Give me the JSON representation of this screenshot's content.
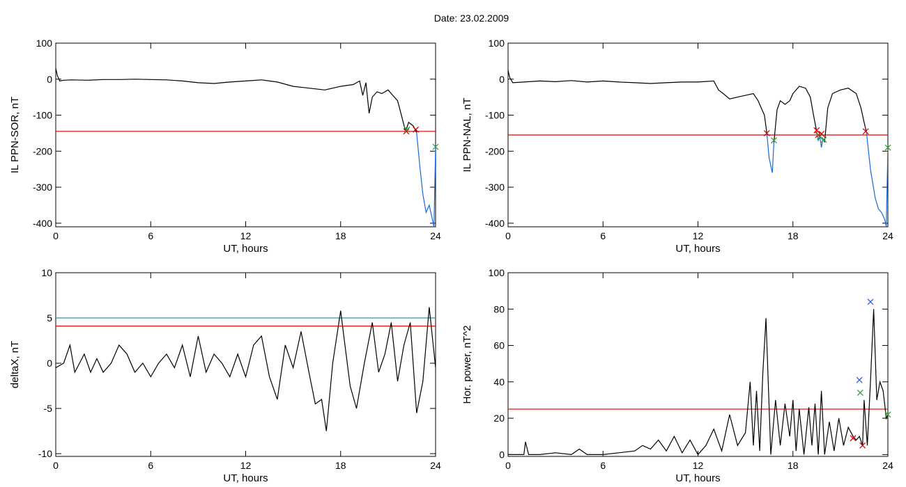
{
  "title": "Date:  23.02.2009",
  "colors": {
    "trace": "#000000",
    "threshold": "#e00000",
    "teal_line": "#2a9a9a",
    "marker_red": "#e00000",
    "marker_green": "#40a040",
    "marker_blue": "#2060e0",
    "segment_blue": "#1a6ad8"
  },
  "chart_data": [
    {
      "type": "line",
      "ylabel": "IL PPN-SOR, nT",
      "xlabel": "UT, hours",
      "xlim": [
        0,
        24
      ],
      "ylim": [
        -410,
        100
      ],
      "xticks": [
        0,
        6,
        12,
        18,
        24
      ],
      "yticks": [
        100,
        0,
        -100,
        -200,
        -300,
        -400
      ],
      "thresholds": [
        {
          "y": -145,
          "color": "#e00000"
        }
      ],
      "series": [
        {
          "color": "#000000",
          "x": [
            0,
            0.1,
            0.25,
            0.5,
            1,
            2,
            3,
            4,
            5,
            6,
            7,
            8,
            9,
            10,
            11,
            12,
            13,
            14,
            15,
            16,
            17,
            18,
            18.8,
            19.2,
            19.4,
            19.6,
            19.8,
            20,
            20.3,
            20.6,
            21,
            21.3,
            21.6,
            21.9,
            22.1,
            22.3,
            22.45,
            22.6,
            22.7,
            22.8
          ],
          "y": [
            30,
            10,
            -5,
            -3,
            -2,
            -3,
            -1,
            -1,
            0,
            -1,
            -2,
            -5,
            -10,
            -12,
            -8,
            -5,
            -2,
            -8,
            -20,
            -25,
            -30,
            -20,
            -15,
            -5,
            -45,
            -10,
            -95,
            -50,
            -35,
            -40,
            -30,
            -45,
            -60,
            -110,
            -145,
            -120,
            -125,
            -130,
            -140,
            -148
          ]
        },
        {
          "color": "#1a6ad8",
          "x": [
            22.8,
            23,
            23.2,
            23.4,
            23.6,
            23.8,
            23.9,
            24
          ],
          "y": [
            -148,
            -240,
            -320,
            -370,
            -350,
            -390,
            -410,
            -190
          ]
        }
      ],
      "markers": [
        {
          "x": 22.15,
          "y": -145,
          "color": "#e00000"
        },
        {
          "x": 22.2,
          "y": -140,
          "color": "#40a040"
        },
        {
          "x": 22.75,
          "y": -140,
          "color": "#e00000"
        },
        {
          "x": 24,
          "y": -188,
          "color": "#40a040"
        }
      ]
    },
    {
      "type": "line",
      "ylabel": "IL PPN-NAL, nT",
      "xlabel": "UT, hours",
      "xlim": [
        0,
        24
      ],
      "ylim": [
        -410,
        100
      ],
      "xticks": [
        0,
        6,
        12,
        18,
        24
      ],
      "yticks": [
        100,
        0,
        -100,
        -200,
        -300,
        -400
      ],
      "thresholds": [
        {
          "y": -155,
          "color": "#e00000"
        }
      ],
      "series": [
        {
          "color": "#000000",
          "x": [
            0,
            0.1,
            0.3,
            1,
            2,
            3,
            4,
            5,
            6,
            7,
            8,
            9,
            10,
            11,
            12,
            13,
            13.3,
            13.6,
            14,
            14.5,
            15,
            15.5,
            15.8,
            16,
            16.2,
            16.35
          ],
          "y": [
            25,
            5,
            -10,
            -8,
            -5,
            -7,
            -4,
            -8,
            -5,
            -8,
            -10,
            -12,
            -10,
            -8,
            -8,
            -5,
            -30,
            -40,
            -55,
            -50,
            -45,
            -40,
            -60,
            -80,
            -100,
            -150
          ]
        },
        {
          "color": "#1a6ad8",
          "x": [
            16.35,
            16.5,
            16.7,
            16.8
          ],
          "y": [
            -150,
            -220,
            -260,
            -175
          ]
        },
        {
          "color": "#000000",
          "x": [
            16.8,
            17,
            17.2,
            17.5,
            17.8,
            18,
            18.4,
            18.8,
            19.1,
            19.3,
            19.5
          ],
          "y": [
            -175,
            -85,
            -60,
            -70,
            -60,
            -40,
            -20,
            -25,
            -50,
            -100,
            -145
          ]
        },
        {
          "color": "#1a6ad8",
          "x": [
            19.5,
            19.6,
            19.7,
            19.8,
            19.9,
            20
          ],
          "y": [
            -145,
            -170,
            -160,
            -190,
            -165,
            -175
          ]
        },
        {
          "color": "#000000",
          "x": [
            20,
            20.2,
            20.5,
            21,
            21.5,
            22,
            22.3,
            22.5,
            22.65
          ],
          "y": [
            -175,
            -80,
            -40,
            -30,
            -25,
            -40,
            -80,
            -120,
            -148
          ]
        },
        {
          "color": "#1a6ad8",
          "x": [
            22.65,
            22.9,
            23.2,
            23.4,
            23.6,
            23.8,
            23.9,
            24
          ],
          "y": [
            -148,
            -250,
            -330,
            -360,
            -370,
            -390,
            -410,
            -190
          ]
        }
      ],
      "markers": [
        {
          "x": 16.35,
          "y": -150,
          "color": "#e00000"
        },
        {
          "x": 16.8,
          "y": -170,
          "color": "#40a040"
        },
        {
          "x": 19.5,
          "y": -142,
          "color": "#e00000"
        },
        {
          "x": 19.6,
          "y": -155,
          "color": "#e00000"
        },
        {
          "x": 19.7,
          "y": -160,
          "color": "#40a040"
        },
        {
          "x": 19.8,
          "y": -152,
          "color": "#e00000"
        },
        {
          "x": 19.95,
          "y": -168,
          "color": "#40a040"
        },
        {
          "x": 22.6,
          "y": -145,
          "color": "#e00000"
        },
        {
          "x": 24,
          "y": -190,
          "color": "#40a040"
        }
      ]
    },
    {
      "type": "line",
      "ylabel": "deltaX, nT",
      "xlabel": "UT, hours",
      "xlim": [
        0,
        24
      ],
      "ylim": [
        -10.3,
        10
      ],
      "xticks": [
        0,
        6,
        12,
        18,
        24
      ],
      "yticks": [
        10,
        5,
        0,
        -5,
        -10
      ],
      "thresholds": [
        {
          "y": 5.0,
          "color": "#2a9a9a"
        },
        {
          "y": 4.1,
          "color": "#e00000"
        }
      ],
      "series": [
        {
          "color": "#000000",
          "x": [
            0,
            0.5,
            0.9,
            1.2,
            1.5,
            1.8,
            2.2,
            2.6,
            3,
            3.5,
            4,
            4.5,
            5,
            5.5,
            6,
            6.5,
            7,
            7.5,
            8,
            8.5,
            9,
            9.5,
            10,
            10.5,
            11,
            11.5,
            12,
            12.5,
            13,
            13.5,
            14,
            14.5,
            15,
            15.5,
            16,
            16.4,
            16.8,
            17.1,
            17.5,
            18,
            18.2,
            18.6,
            19,
            19.5,
            20,
            20.4,
            20.8,
            21.2,
            21.6,
            22,
            22.4,
            22.8,
            23.2,
            23.6,
            24
          ],
          "y": [
            -0.5,
            0,
            2,
            -1,
            0,
            1,
            -1,
            0.5,
            -1,
            0,
            2,
            1,
            -1,
            0,
            -1.5,
            0,
            1,
            -0.5,
            2,
            -1.5,
            3,
            -1,
            1,
            0,
            -1.5,
            1,
            -1.5,
            2,
            3,
            -1.5,
            -4,
            2,
            -0.5,
            3.5,
            -1,
            -4.5,
            -4,
            -7.5,
            0,
            5.8,
            3,
            -2.5,
            -5,
            0,
            4.5,
            -1,
            1,
            4.5,
            -2,
            2,
            4.5,
            -5.5,
            -2,
            6.2,
            -0.5
          ]
        }
      ],
      "markers": []
    },
    {
      "type": "line",
      "ylabel": "Hor. power, nT^2",
      "xlabel": "UT, hours",
      "xlim": [
        0,
        24
      ],
      "ylim": [
        -1,
        100
      ],
      "xticks": [
        0,
        6,
        12,
        18,
        24
      ],
      "yticks": [
        100,
        80,
        60,
        40,
        20,
        0
      ],
      "thresholds": [
        {
          "y": 25,
          "color": "#e00000"
        }
      ],
      "series": [
        {
          "color": "#000000",
          "x": [
            0,
            0.5,
            1,
            1.1,
            1.3,
            2,
            3,
            4,
            4.5,
            5,
            6,
            7,
            8,
            8.5,
            9,
            9.5,
            10,
            10.5,
            11,
            11.5,
            12,
            12.5,
            13,
            13.5,
            14,
            14.5,
            15,
            15.3,
            15.5,
            15.7,
            15.9,
            16.1,
            16.3,
            16.6,
            16.9,
            17.2,
            17.5,
            17.8,
            18,
            18.2,
            18.4,
            18.7,
            19,
            19.2,
            19.4,
            19.6,
            19.8,
            20,
            20.3,
            20.6,
            20.9,
            21.2,
            21.5,
            21.8,
            22,
            22.2,
            22.4,
            22.5,
            22.7,
            22.9,
            23.1,
            23.3,
            23.5,
            23.7,
            23.9,
            24
          ],
          "y": [
            0,
            0,
            0,
            7,
            0,
            0,
            1,
            0,
            3,
            0,
            0,
            1,
            2,
            5,
            3,
            8,
            2,
            10,
            1,
            8,
            0,
            5,
            14,
            2,
            22,
            5,
            12,
            40,
            5,
            35,
            2,
            45,
            75,
            0,
            30,
            5,
            28,
            10,
            30,
            2,
            25,
            0,
            26,
            5,
            28,
            0,
            35,
            0,
            18,
            2,
            20,
            5,
            15,
            10,
            8,
            10,
            5,
            30,
            5,
            40,
            80,
            30,
            40,
            35,
            20,
            22
          ]
        }
      ],
      "markers": [
        {
          "x": 21.8,
          "y": 9,
          "color": "#e00000"
        },
        {
          "x": 22.2,
          "y": 41,
          "color": "#2060e0"
        },
        {
          "x": 22.25,
          "y": 34,
          "color": "#40a040"
        },
        {
          "x": 22.4,
          "y": 5,
          "color": "#e00000"
        },
        {
          "x": 22.9,
          "y": 84,
          "color": "#2060e0"
        },
        {
          "x": 24,
          "y": 22,
          "color": "#40a040"
        }
      ]
    }
  ]
}
